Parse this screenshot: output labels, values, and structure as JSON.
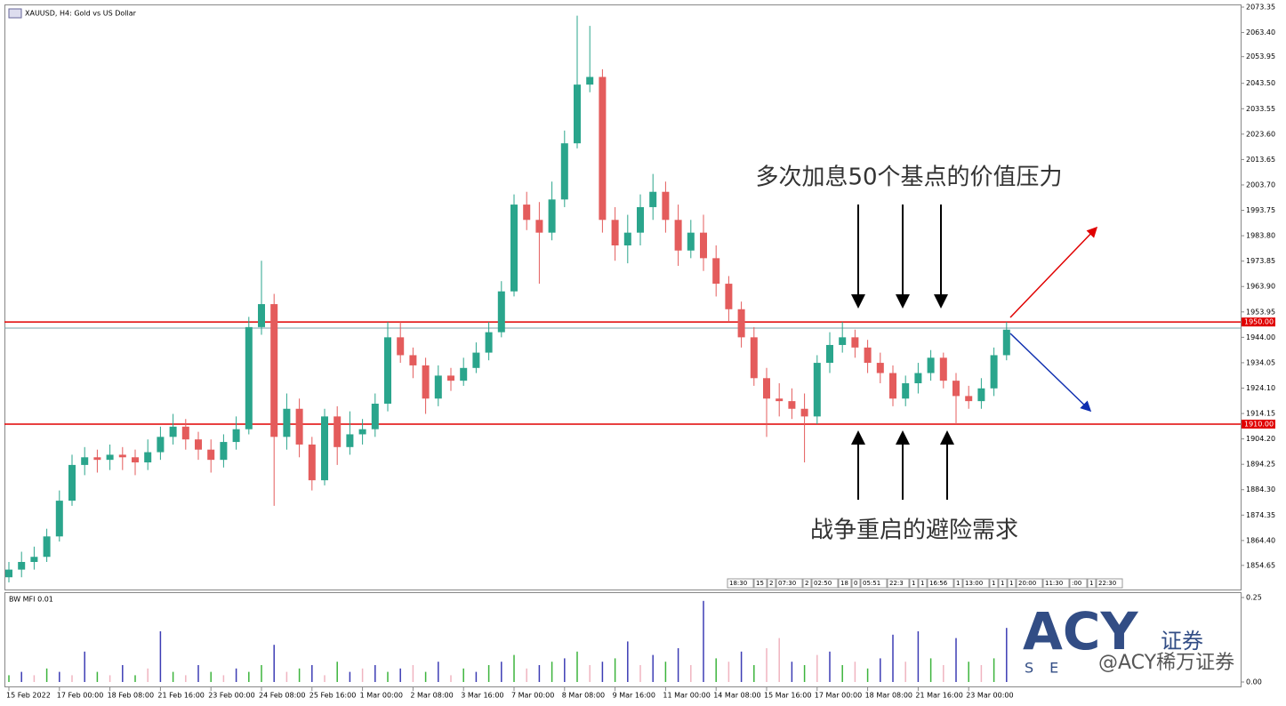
{
  "chart_data": {
    "type": "candlestick",
    "title": "XAUUSD, H4: Gold vs US Dollar",
    "categories": [
      "15 Feb 2022",
      null,
      null,
      null,
      "17 Feb 00:00",
      null,
      null,
      null,
      "18 Feb 08:00",
      null,
      null,
      null,
      "21 Feb 16:00",
      null,
      null,
      null,
      "23 Feb 00:00",
      null,
      null,
      null,
      "24 Feb 08:00",
      null,
      null,
      null,
      "25 Feb 16:00",
      null,
      null,
      null,
      "1 Mar 00:00",
      null,
      null,
      null,
      "2 Mar 08:00",
      null,
      null,
      null,
      "3 Mar 16:00",
      null,
      null,
      null,
      "7 Mar 00:00",
      null,
      null,
      null,
      "8 Mar 08:00",
      null,
      null,
      null,
      "9 Mar 16:00",
      null,
      null,
      null,
      "11 Mar 00:00",
      null,
      null,
      null,
      "14 Mar 08:00",
      null,
      null,
      null,
      "15 Mar 16:00",
      null,
      null,
      null,
      "17 Mar 00:00",
      null,
      null,
      null,
      "18 Mar 08:00",
      null,
      null,
      null,
      "21 Mar 16:00",
      null,
      null,
      null,
      "23 Mar 00:00",
      null,
      null,
      null
    ],
    "open": [
      1850,
      1853,
      1856,
      1858,
      1866,
      1880,
      1894,
      1897,
      1896,
      1898,
      1897,
      1895,
      1899,
      1905,
      1909,
      1904,
      1900,
      1896,
      1903,
      1908,
      1948,
      1957,
      1905,
      1916,
      1902,
      1888,
      1913,
      1901,
      1906,
      1908,
      1918,
      1944,
      1937,
      1933,
      1920,
      1929,
      1927,
      1932,
      1938,
      1946,
      1962,
      1996,
      1990,
      1985,
      1998,
      2020,
      2043,
      2046,
      1990,
      1980,
      1985,
      1995,
      2001,
      1990,
      1978,
      1985,
      1975,
      1965,
      1955,
      1944,
      1928,
      1920,
      1919,
      1916,
      1913,
      1934,
      1941,
      1944,
      1940,
      1934,
      1930,
      1920,
      1926,
      1930,
      1936,
      1927,
      1921,
      1919,
      1924,
      1937
    ],
    "high": [
      1856,
      1860,
      1862,
      1869,
      1884,
      1898,
      1901,
      1900,
      1902,
      1901,
      1900,
      1904,
      1909,
      1914,
      1912,
      1907,
      1904,
      1906,
      1913,
      1952,
      1974,
      1961,
      1922,
      1920,
      1905,
      1916,
      1917,
      1915,
      1912,
      1922,
      1950,
      1950,
      1940,
      1936,
      1933,
      1932,
      1936,
      1942,
      1950,
      1966,
      2000,
      2001,
      1997,
      2005,
      2025,
      2070,
      2066,
      2049,
      1995,
      1992,
      2000,
      2008,
      2005,
      1996,
      1990,
      1992,
      1980,
      1968,
      1958,
      1948,
      1932,
      1926,
      1924,
      1922,
      1937,
      1946,
      1950,
      1947,
      1943,
      1938,
      1933,
      1929,
      1934,
      1939,
      1938,
      1930,
      1925,
      1928,
      1940,
      1950
    ],
    "low": [
      1848,
      1850,
      1853,
      1856,
      1864,
      1878,
      1890,
      1891,
      1892,
      1892,
      1890,
      1892,
      1896,
      1902,
      1900,
      1896,
      1891,
      1893,
      1900,
      1906,
      1945,
      1878,
      1900,
      1897,
      1884,
      1886,
      1894,
      1898,
      1902,
      1905,
      1915,
      1934,
      1928,
      1914,
      1917,
      1923,
      1925,
      1930,
      1935,
      1944,
      1960,
      1986,
      1965,
      1982,
      1995,
      2018,
      2040,
      1985,
      1974,
      1973,
      1980,
      1990,
      1985,
      1972,
      1975,
      1970,
      1960,
      1950,
      1940,
      1925,
      1905,
      1913,
      1912,
      1895,
      1910,
      1930,
      1938,
      1936,
      1930,
      1926,
      1917,
      1917,
      1922,
      1927,
      1924,
      1910,
      1916,
      1916,
      1921,
      1935
    ],
    "close": [
      1853,
      1856,
      1858,
      1866,
      1880,
      1894,
      1897,
      1896,
      1898,
      1897,
      1895,
      1899,
      1905,
      1909,
      1904,
      1900,
      1896,
      1903,
      1908,
      1948,
      1957,
      1905,
      1916,
      1902,
      1888,
      1913,
      1901,
      1906,
      1908,
      1918,
      1944,
      1937,
      1933,
      1920,
      1929,
      1927,
      1932,
      1938,
      1946,
      1962,
      1996,
      1990,
      1985,
      1998,
      2020,
      2043,
      2046,
      1990,
      1980,
      1985,
      1995,
      2001,
      1990,
      1978,
      1985,
      1975,
      1965,
      1955,
      1944,
      1928,
      1920,
      1919,
      1916,
      1913,
      1934,
      1941,
      1944,
      1940,
      1934,
      1930,
      1920,
      1926,
      1930,
      1936,
      1927,
      1921,
      1919,
      1924,
      1937,
      1947
    ],
    "up_color": "#2aa58c",
    "down_color": "#e45c5c",
    "ylim": [
      1845.2,
      2074.4
    ],
    "yticks": [
      2073.35,
      {
        "value": 2063.4,
        "label": "2063.40"
      },
      2053.95,
      {
        "value": 2043.5,
        "label": "2043.50"
      },
      2033.55,
      {
        "value": 2023.6,
        "label": "2023.60"
      },
      2013.65,
      {
        "value": 2003.7,
        "label": "2003.70"
      },
      1993.75,
      {
        "value": 1983.8,
        "label": "1983.80"
      },
      1973.85,
      {
        "value": 1963.9,
        "label": "1963.90"
      },
      1953.95,
      {
        "value": 1944,
        "label": "1944.00"
      },
      1934.05,
      {
        "value": 1924.1,
        "label": "1924.10"
      },
      1914.15,
      {
        "value": 1904.2,
        "label": "1904.20"
      },
      1894.25,
      {
        "value": 1884.3,
        "label": "1884.30"
      },
      1874.35,
      {
        "value": 1864.4,
        "label": "1864.40"
      },
      1854.65
    ],
    "levels": [
      {
        "value": 1950,
        "label": "1950.00",
        "color": "#e00000"
      },
      {
        "value": 1910,
        "label": "1910.00",
        "color": "#e00000"
      }
    ],
    "bid": 1947.6,
    "annotations": [
      "多次加息50个基点的价值压力",
      "战争重启的避险需求"
    ],
    "time_tags": [
      "18:30",
      "15",
      "2",
      "07:30",
      "2",
      "02:50",
      "18",
      "0",
      "05:51",
      "22:3",
      "1",
      "1",
      "16:56",
      "1",
      "13:00",
      "1",
      "1",
      "1",
      "20:00",
      "11:30",
      ":00",
      "1",
      "22:30"
    ],
    "indicator": {
      "title": "BW MFI 0.01",
      "values": [
        0.02,
        0.03,
        0.02,
        0.04,
        0.03,
        0.02,
        0.09,
        0.03,
        0.02,
        0.05,
        0.02,
        0.04,
        0.15,
        0.03,
        0.02,
        0.05,
        0.03,
        0.02,
        0.04,
        0.03,
        0.05,
        0.11,
        0.03,
        0.04,
        0.05,
        0.02,
        0.06,
        0.03,
        0.04,
        0.05,
        0.03,
        0.04,
        0.05,
        0.03,
        0.06,
        0.02,
        0.04,
        0.03,
        0.05,
        0.06,
        0.08,
        0.04,
        0.05,
        0.06,
        0.07,
        0.09,
        0.05,
        0.06,
        0.07,
        0.12,
        0.05,
        0.08,
        0.06,
        0.1,
        0.05,
        0.24,
        0.07,
        0.06,
        0.09,
        0.05,
        0.1,
        0.13,
        0.06,
        0.05,
        0.08,
        0.09,
        0.05,
        0.06,
        0.04,
        0.07,
        0.14,
        0.06,
        0.15,
        0.07,
        0.05,
        0.13,
        0.06,
        0.05,
        0.07,
        0.16
      ],
      "colors": [
        "#3cb43c",
        "#3c3cb4",
        "#f0b4c0",
        "#3cb43c",
        "#3c3cb4",
        "#f0b4c0",
        "#3c3cb4",
        "#3cb43c",
        "#f0b4c0",
        "#3c3cb4",
        "#3cb43c",
        "#f0b4c0",
        "#3c3cb4",
        "#3cb43c",
        "#f0b4c0",
        "#3c3cb4",
        "#3cb43c",
        "#f0b4c0",
        "#3c3cb4",
        "#3cb43c",
        "#3cb43c",
        "#3c3cb4",
        "#f0b4c0",
        "#3cb43c",
        "#3c3cb4",
        "#f0b4c0",
        "#3cb43c",
        "#3c3cb4",
        "#f0b4c0",
        "#3c3cb4",
        "#3cb43c",
        "#3c3cb4",
        "#f0b4c0",
        "#3cb43c",
        "#3c3cb4",
        "#f0b4c0",
        "#3cb43c",
        "#3c3cb4",
        "#3cb43c",
        "#3c3cb4",
        "#3cb43c",
        "#f0b4c0",
        "#3c3cb4",
        "#3cb43c",
        "#3c3cb4",
        "#3cb43c",
        "#f0b4c0",
        "#3c3cb4",
        "#3cb43c",
        "#3c3cb4",
        "#f0b4c0",
        "#3c3cb4",
        "#3cb43c",
        "#3c3cb4",
        "#f0b4c0",
        "#3c3cb4",
        "#3cb43c",
        "#f0b4c0",
        "#3c3cb4",
        "#3cb43c",
        "#f0b4c0",
        "#f0b4c0",
        "#3c3cb4",
        "#3cb43c",
        "#f0b4c0",
        "#3c3cb4",
        "#3cb43c",
        "#f0b4c0",
        "#3cb43c",
        "#3c3cb4",
        "#3c3cb4",
        "#f0b4c0",
        "#3c3cb4",
        "#3cb43c",
        "#f0b4c0",
        "#3c3cb4",
        "#3cb43c",
        "#f0b4c0",
        "#3cb43c",
        "#3c3cb4"
      ],
      "ylim": [
        0,
        0.25
      ],
      "yticks": [
        {
          "value": 0.25,
          "label": "0.25"
        },
        {
          "value": 0,
          "label": "0.00"
        }
      ]
    },
    "watermark": {
      "logo": "ACY",
      "sub": "证券",
      "tag": "SE",
      "handle": "@ACY稀万证券"
    }
  }
}
